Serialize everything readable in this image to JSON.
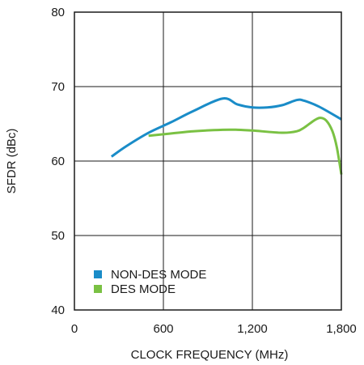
{
  "chart_data": {
    "type": "line",
    "title": "",
    "xlabel": "CLOCK FREQUENCY (MHz)",
    "ylabel": "SFDR (dBc)",
    "xlim": [
      0,
      1800
    ],
    "ylim": [
      40,
      80
    ],
    "x_ticks": [
      0,
      600,
      1200,
      1800
    ],
    "x_tick_labels": [
      "0",
      "600",
      "1,200",
      "1,800"
    ],
    "y_ticks": [
      40,
      50,
      60,
      70,
      80
    ],
    "y_tick_labels": [
      "40",
      "50",
      "60",
      "70",
      "80"
    ],
    "grid": true,
    "legend_position": "bottom-left",
    "series": [
      {
        "name": "NON-DES MODE",
        "color": "#1a8cc8",
        "x": [
          250,
          350,
          500,
          650,
          800,
          1000,
          1100,
          1200,
          1300,
          1400,
          1500,
          1550,
          1650,
          1800
        ],
        "y": [
          60.6,
          62.0,
          63.8,
          65.2,
          66.7,
          68.4,
          67.6,
          67.2,
          67.2,
          67.5,
          68.2,
          68.1,
          67.3,
          65.6
        ]
      },
      {
        "name": "DES MODE",
        "color": "#7ac143",
        "x": [
          500,
          600,
          800,
          1000,
          1100,
          1200,
          1400,
          1500,
          1550,
          1620,
          1660,
          1700,
          1740,
          1770,
          1800
        ],
        "y": [
          63.4,
          63.6,
          64.0,
          64.2,
          64.2,
          64.1,
          63.8,
          64.0,
          64.5,
          65.5,
          65.8,
          65.4,
          64.0,
          61.8,
          58.2
        ]
      }
    ]
  }
}
